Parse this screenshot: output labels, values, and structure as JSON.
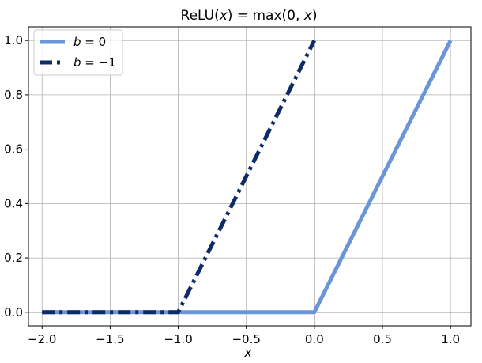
{
  "chart_data": {
    "type": "line",
    "title": "ReLU(x) = max(0, x)",
    "title_parts": {
      "pre": "ReLU(",
      "var1": "x",
      "mid": ") = max(0, ",
      "var2": "x",
      "post": ")"
    },
    "xlabel": "x",
    "ylabel": "",
    "xlim": [
      -2.1,
      1.15
    ],
    "ylim": [
      -0.05,
      1.05
    ],
    "xticks": [
      -2.0,
      -1.5,
      -1.0,
      -0.5,
      0.0,
      0.5,
      1.0
    ],
    "xtick_labels": [
      "−2.0",
      "−1.5",
      "−1.0",
      "−0.5",
      "0.0",
      "0.5",
      "1.0"
    ],
    "yticks": [
      0.0,
      0.2,
      0.4,
      0.6,
      0.8,
      1.0
    ],
    "ytick_labels": [
      "0.0",
      "0.2",
      "0.4",
      "0.6",
      "0.8",
      "1.0"
    ],
    "grid": true,
    "zero_lines": true,
    "legend_position": "top-left",
    "series": [
      {
        "name": "b = 0",
        "legend_label": {
          "var": "b",
          "rest": " = 0"
        },
        "color": "#6a96d8",
        "style": "solid",
        "x": [
          -2.0,
          -1.0,
          0.0,
          1.0
        ],
        "y": [
          0.0,
          0.0,
          0.0,
          1.0
        ]
      },
      {
        "name": "b = −1",
        "legend_label": {
          "var": "b",
          "rest": " = −1"
        },
        "color": "#0e2b66",
        "style": "dashdot",
        "x": [
          -2.0,
          -1.0,
          0.0
        ],
        "y": [
          0.0,
          0.0,
          1.0
        ]
      }
    ]
  }
}
